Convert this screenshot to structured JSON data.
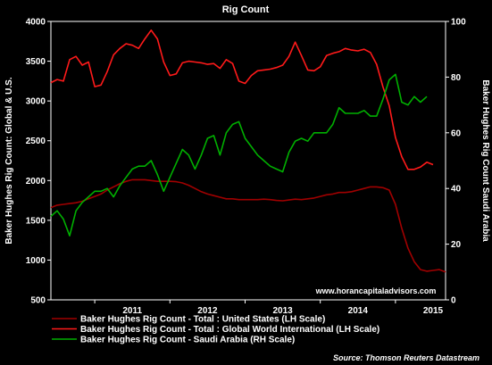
{
  "chart_data": {
    "type": "line",
    "title": "Rig Count",
    "ylabel_left": "Baker Hughes Rig Count: Global & U.S.",
    "ylabel_right": "Baker Hughes Rig Count Saudi Arabia",
    "ylim_left": [
      500,
      4000
    ],
    "ylim_right": [
      0,
      100
    ],
    "yticks_left": [
      500,
      1000,
      1500,
      2000,
      2500,
      3000,
      3500,
      4000
    ],
    "yticks_right": [
      0,
      20,
      40,
      60,
      80,
      100
    ],
    "xlim": [
      "2010-06",
      "2015-05"
    ],
    "xticks": [
      {
        "label": "2011",
        "date": "2011-01"
      },
      {
        "label": "2012",
        "date": "2012-01"
      },
      {
        "label": "2013",
        "date": "2013-01"
      },
      {
        "label": "2014",
        "date": "2014-01"
      },
      {
        "label": "2015",
        "date": "2015-01"
      }
    ],
    "grid": false,
    "legend_position": "bottom-left",
    "watermark": "www.horancapitaladvisors.com",
    "source": "Source: Thomson Reuters Datastream",
    "series": [
      {
        "name": "Baker Hughes Rig Count - Total : United States (LH Scale)",
        "axis": "left",
        "color": "#a00000",
        "points": [
          [
            "2010-06",
            1660
          ],
          [
            "2010-07",
            1690
          ],
          [
            "2010-08",
            1700
          ],
          [
            "2010-09",
            1710
          ],
          [
            "2010-10",
            1720
          ],
          [
            "2010-11",
            1740
          ],
          [
            "2010-12",
            1770
          ],
          [
            "2011-01",
            1800
          ],
          [
            "2011-02",
            1830
          ],
          [
            "2011-03",
            1880
          ],
          [
            "2011-04",
            1920
          ],
          [
            "2011-05",
            1960
          ],
          [
            "2011-06",
            1990
          ],
          [
            "2011-07",
            2010
          ],
          [
            "2011-08",
            2010
          ],
          [
            "2011-09",
            2010
          ],
          [
            "2011-10",
            2000
          ],
          [
            "2011-11",
            1990
          ],
          [
            "2011-12",
            1990
          ],
          [
            "2012-01",
            1990
          ],
          [
            "2012-02",
            1985
          ],
          [
            "2012-03",
            1970
          ],
          [
            "2012-04",
            1940
          ],
          [
            "2012-05",
            1900
          ],
          [
            "2012-06",
            1860
          ],
          [
            "2012-07",
            1830
          ],
          [
            "2012-08",
            1810
          ],
          [
            "2012-09",
            1790
          ],
          [
            "2012-10",
            1770
          ],
          [
            "2012-11",
            1770
          ],
          [
            "2012-12",
            1760
          ],
          [
            "2013-01",
            1760
          ],
          [
            "2013-02",
            1760
          ],
          [
            "2013-03",
            1760
          ],
          [
            "2013-04",
            1765
          ],
          [
            "2013-05",
            1760
          ],
          [
            "2013-06",
            1750
          ],
          [
            "2013-07",
            1745
          ],
          [
            "2013-08",
            1755
          ],
          [
            "2013-09",
            1765
          ],
          [
            "2013-10",
            1760
          ],
          [
            "2013-11",
            1770
          ],
          [
            "2013-12",
            1780
          ],
          [
            "2014-01",
            1800
          ],
          [
            "2014-02",
            1820
          ],
          [
            "2014-03",
            1830
          ],
          [
            "2014-04",
            1850
          ],
          [
            "2014-05",
            1850
          ],
          [
            "2014-06",
            1860
          ],
          [
            "2014-07",
            1880
          ],
          [
            "2014-08",
            1900
          ],
          [
            "2014-09",
            1920
          ],
          [
            "2014-10",
            1920
          ],
          [
            "2014-11",
            1910
          ],
          [
            "2014-12",
            1880
          ],
          [
            "2015-01",
            1700
          ],
          [
            "2015-02",
            1400
          ],
          [
            "2015-03",
            1150
          ],
          [
            "2015-04",
            980
          ],
          [
            "2015-05",
            880
          ]
        ],
        "points_tail": [
          [
            "2015-06",
            860
          ],
          [
            "2015-07",
            870
          ],
          [
            "2015-08",
            880
          ],
          [
            "2015-09",
            850
          ]
        ]
      },
      {
        "name": "Baker Hughes Rig Count - Total : Global World International (LH Scale)",
        "axis": "left",
        "color": "#ff1a1a",
        "points": [
          [
            "2010-06",
            3230
          ],
          [
            "2010-07",
            3270
          ],
          [
            "2010-08",
            3250
          ],
          [
            "2010-09",
            3520
          ],
          [
            "2010-10",
            3560
          ],
          [
            "2010-11",
            3450
          ],
          [
            "2010-12",
            3490
          ],
          [
            "2011-01",
            3180
          ],
          [
            "2011-02",
            3200
          ],
          [
            "2011-03",
            3370
          ],
          [
            "2011-04",
            3580
          ],
          [
            "2011-05",
            3660
          ],
          [
            "2011-06",
            3720
          ],
          [
            "2011-07",
            3700
          ],
          [
            "2011-08",
            3660
          ],
          [
            "2011-09",
            3780
          ],
          [
            "2011-10",
            3890
          ],
          [
            "2011-11",
            3780
          ],
          [
            "2011-12",
            3490
          ],
          [
            "2012-01",
            3320
          ],
          [
            "2012-02",
            3340
          ],
          [
            "2012-03",
            3480
          ],
          [
            "2012-04",
            3500
          ],
          [
            "2012-05",
            3490
          ],
          [
            "2012-06",
            3480
          ],
          [
            "2012-07",
            3460
          ],
          [
            "2012-08",
            3470
          ],
          [
            "2012-09",
            3410
          ],
          [
            "2012-10",
            3520
          ],
          [
            "2012-11",
            3470
          ],
          [
            "2012-12",
            3250
          ],
          [
            "2013-01",
            3220
          ],
          [
            "2013-02",
            3320
          ],
          [
            "2013-03",
            3380
          ],
          [
            "2013-04",
            3390
          ],
          [
            "2013-05",
            3400
          ],
          [
            "2013-06",
            3420
          ],
          [
            "2013-07",
            3450
          ],
          [
            "2013-08",
            3560
          ],
          [
            "2013-09",
            3740
          ],
          [
            "2013-10",
            3570
          ],
          [
            "2013-11",
            3390
          ],
          [
            "2013-12",
            3380
          ],
          [
            "2014-01",
            3430
          ],
          [
            "2014-02",
            3570
          ],
          [
            "2014-03",
            3600
          ],
          [
            "2014-04",
            3620
          ],
          [
            "2014-05",
            3660
          ],
          [
            "2014-06",
            3640
          ],
          [
            "2014-07",
            3630
          ],
          [
            "2014-08",
            3650
          ],
          [
            "2014-09",
            3610
          ],
          [
            "2014-10",
            3460
          ],
          [
            "2014-11",
            3180
          ],
          [
            "2014-12",
            2940
          ],
          [
            "2015-01",
            2540
          ],
          [
            "2015-02",
            2300
          ],
          [
            "2015-03",
            2140
          ],
          [
            "2015-04",
            2140
          ],
          [
            "2015-05",
            2170
          ]
        ],
        "points_tail": [
          [
            "2015-06",
            2230
          ],
          [
            "2015-07",
            2200
          ]
        ]
      },
      {
        "name": "Baker Hughes Rig Count - Saudi Arabia (RH Scale)",
        "axis": "right",
        "color": "#00b000",
        "points": [
          [
            "2010-06",
            30
          ],
          [
            "2010-07",
            32
          ],
          [
            "2010-08",
            29
          ],
          [
            "2010-09",
            23
          ],
          [
            "2010-10",
            32
          ],
          [
            "2010-11",
            35
          ],
          [
            "2010-12",
            37
          ],
          [
            "2011-01",
            39
          ],
          [
            "2011-02",
            39
          ],
          [
            "2011-03",
            40
          ],
          [
            "2011-04",
            37
          ],
          [
            "2011-05",
            41
          ],
          [
            "2011-06",
            44
          ],
          [
            "2011-07",
            47
          ],
          [
            "2011-08",
            48
          ],
          [
            "2011-09",
            48
          ],
          [
            "2011-10",
            50
          ],
          [
            "2011-11",
            45
          ],
          [
            "2011-12",
            39
          ],
          [
            "2012-01",
            44
          ],
          [
            "2012-02",
            49
          ],
          [
            "2012-03",
            54
          ],
          [
            "2012-04",
            52
          ],
          [
            "2012-05",
            47
          ],
          [
            "2012-06",
            52
          ],
          [
            "2012-07",
            58
          ],
          [
            "2012-08",
            59
          ],
          [
            "2012-09",
            52
          ],
          [
            "2012-10",
            60
          ],
          [
            "2012-11",
            63
          ],
          [
            "2012-12",
            64
          ],
          [
            "2013-01",
            58
          ],
          [
            "2013-02",
            55
          ],
          [
            "2013-03",
            52
          ],
          [
            "2013-04",
            50
          ],
          [
            "2013-05",
            48
          ],
          [
            "2013-06",
            47
          ],
          [
            "2013-07",
            46
          ],
          [
            "2013-08",
            53
          ],
          [
            "2013-09",
            57
          ],
          [
            "2013-10",
            58
          ],
          [
            "2013-11",
            57
          ],
          [
            "2013-12",
            60
          ],
          [
            "2014-01",
            60
          ],
          [
            "2014-02",
            60
          ],
          [
            "2014-03",
            63
          ],
          [
            "2014-04",
            69
          ],
          [
            "2014-05",
            67
          ],
          [
            "2014-06",
            67
          ],
          [
            "2014-07",
            67
          ],
          [
            "2014-08",
            68
          ],
          [
            "2014-09",
            66
          ],
          [
            "2014-10",
            66
          ],
          [
            "2014-11",
            72
          ],
          [
            "2014-12",
            79
          ],
          [
            "2015-01",
            81
          ],
          [
            "2015-02",
            71
          ],
          [
            "2015-03",
            70
          ],
          [
            "2015-04",
            73
          ],
          [
            "2015-05",
            71
          ]
        ],
        "points_tail": [
          [
            "2015-06",
            73
          ]
        ]
      }
    ]
  }
}
